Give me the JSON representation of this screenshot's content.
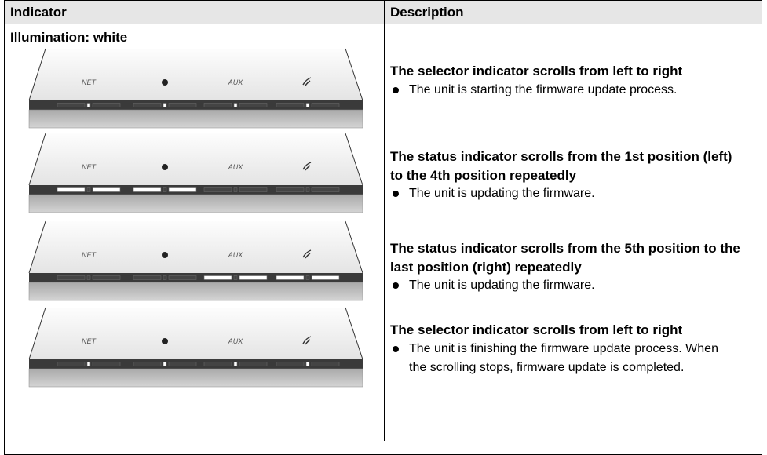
{
  "table": {
    "header": [
      "Indicator",
      "Description"
    ],
    "illumination": "Illumination: white",
    "device_labels": {
      "net": "NET",
      "aux": "AUX"
    },
    "rows": [
      {
        "title": "The selector indicator scrolls from left to right",
        "bullet": "The unit is starting the firmware update process."
      },
      {
        "title": "The status indicator scrolls from the 1st position (left) to the 4th position repeatedly",
        "bullet": "The unit is updating the firmware."
      },
      {
        "title": "The status indicator scrolls from the 5th position to the last position (right) repeatedly",
        "bullet": "The unit is updating the firmware."
      },
      {
        "title": "The selector indicator scrolls from left to right",
        "bullet": "The unit is finishing the firmware update process. When the scrolling stops, firmware update is completed."
      }
    ]
  }
}
